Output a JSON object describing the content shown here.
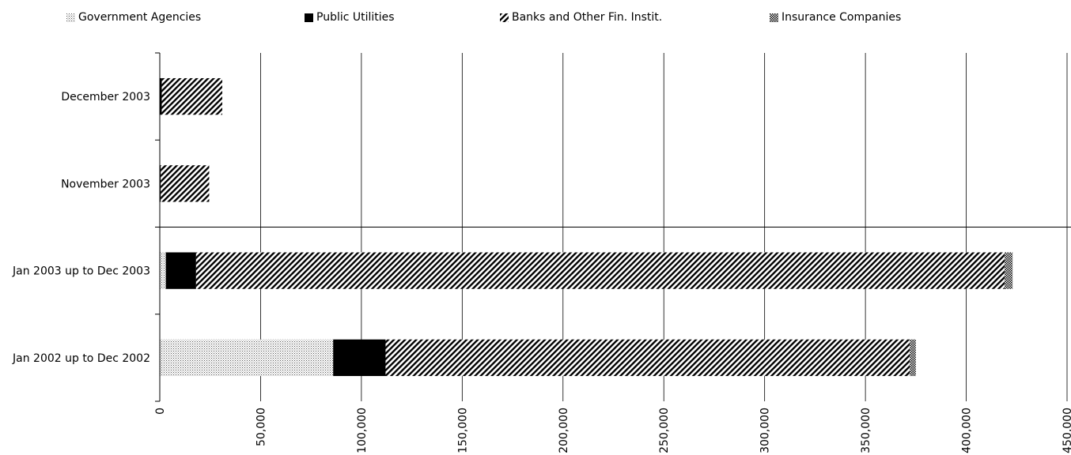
{
  "chart_data": {
    "type": "bar",
    "orientation": "horizontal",
    "stacked": true,
    "title": "",
    "xlabel": "",
    "ylabel": "",
    "xlim": [
      0,
      450000
    ],
    "x_ticks": [
      0,
      50000,
      100000,
      150000,
      200000,
      250000,
      300000,
      350000,
      400000,
      450000
    ],
    "x_tick_labels": [
      "0",
      "50,000",
      "100,000",
      "150,000",
      "200,000",
      "250,000",
      "300,000",
      "350,000",
      "400,000",
      "450,000"
    ],
    "grid": "vertical major gridlines",
    "legend_position": "top",
    "categories": [
      "December 2003",
      "November 2003",
      "Jan 2003 up to Dec 2003",
      "Jan 2002 up to Dec 2002"
    ],
    "series": [
      {
        "name": "Government Agencies",
        "pattern": "dots",
        "values": [
          0,
          0,
          3000,
          86000
        ]
      },
      {
        "name": "Public Utilities",
        "pattern": "solid",
        "values": [
          1000,
          500,
          15000,
          26000
        ]
      },
      {
        "name": "Banks and Other Fin. Instit.",
        "pattern": "diagonal",
        "values": [
          30000,
          24000,
          401000,
          260000
        ]
      },
      {
        "name": "Insurance Companies",
        "pattern": "checker",
        "values": [
          0,
          0,
          4000,
          3000
        ]
      }
    ]
  },
  "colors": {
    "fill": "#000000",
    "background": "#ffffff",
    "grid": "#000000"
  }
}
